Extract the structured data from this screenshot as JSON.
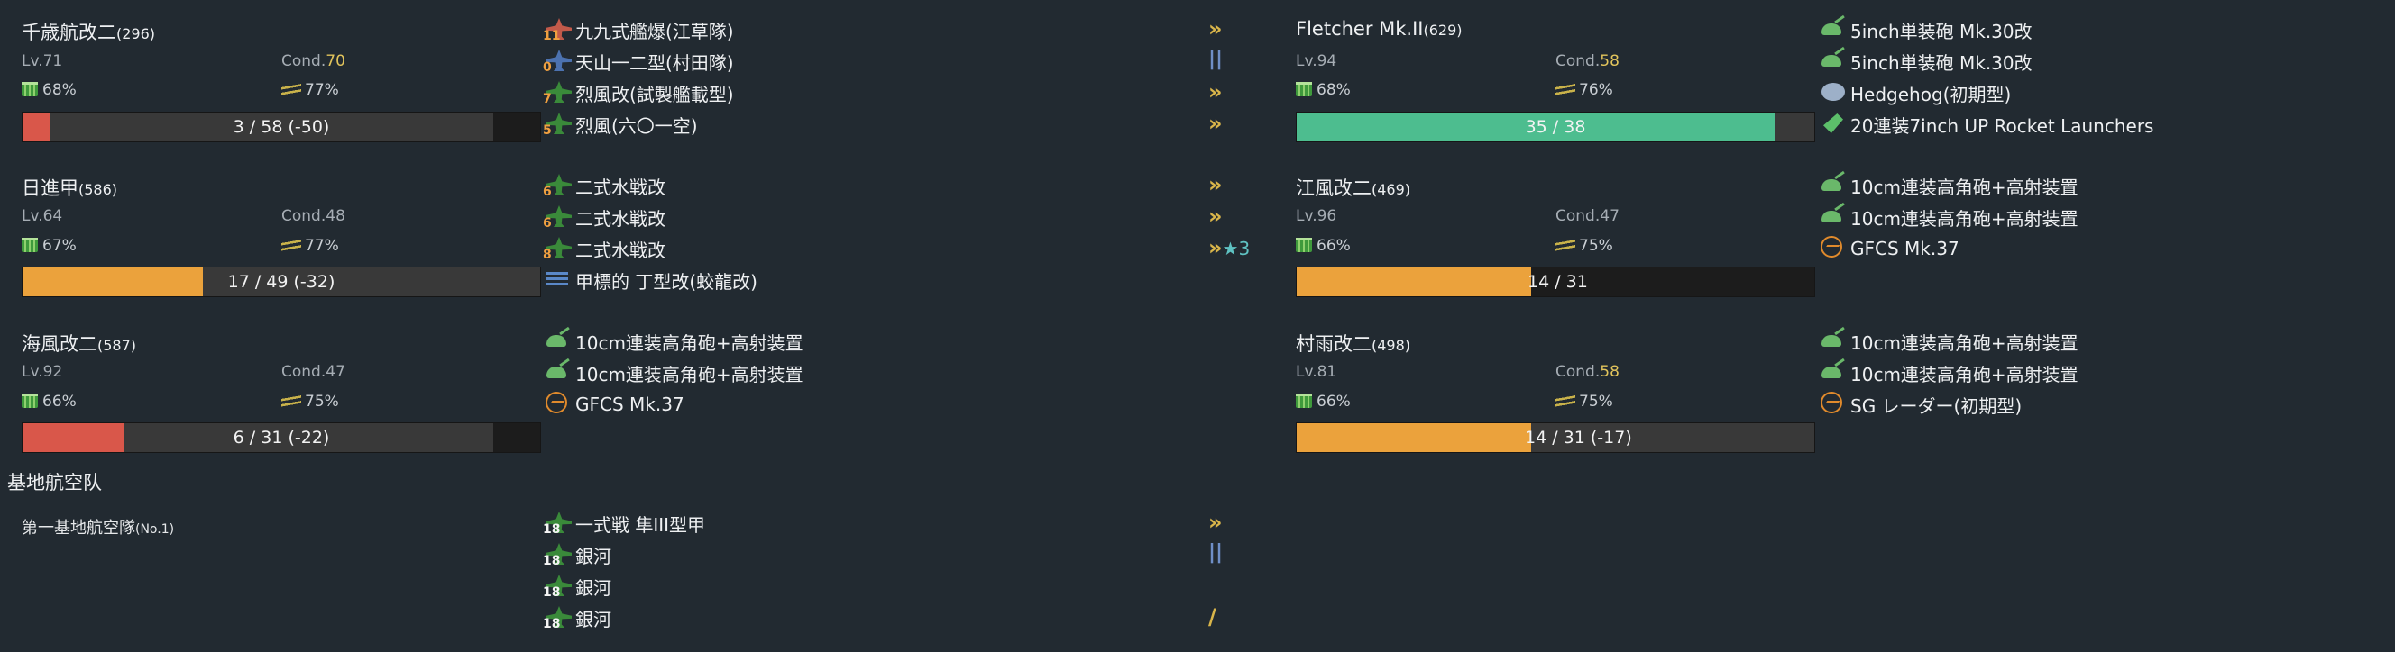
{
  "left_ships": [
    {
      "name": "千歳航改二",
      "id": "(296)",
      "lv": "Lv.71",
      "cond_label": "Cond.",
      "cond_value": "70",
      "ammo": "68%",
      "fuel": "77%",
      "hp": "3 / 58 (-50)",
      "hp_fraction": 0.052,
      "hp_color": "#d9574a",
      "equip": [
        {
          "icon": "dive-bomber-icon",
          "count": "11",
          "name": "九九式艦爆(江草隊)",
          "prof": "»"
        },
        {
          "icon": "torpedo-bomber-icon",
          "count": "0",
          "name": "天山一二型(村田隊)",
          "prof": "||"
        },
        {
          "icon": "fighter-icon",
          "count": "7",
          "name": "烈風改(試製艦載型)",
          "prof": "»"
        },
        {
          "icon": "fighter-icon",
          "count": "5",
          "name": "烈風(六〇一空)",
          "prof": "»"
        }
      ]
    },
    {
      "name": "日進甲",
      "id": "(586)",
      "lv": "Lv.64",
      "cond_label": "Cond.",
      "cond_value": "48",
      "ammo": "67%",
      "fuel": "77%",
      "hp": "17 / 49 (-32)",
      "hp_fraction": 0.347,
      "hp_color": "#eba23c",
      "equip": [
        {
          "icon": "seaplane-fighter-icon",
          "count": "6",
          "name": "二式水戦改",
          "prof": "»"
        },
        {
          "icon": "seaplane-fighter-icon",
          "count": "6",
          "name": "二式水戦改",
          "prof": "»"
        },
        {
          "icon": "seaplane-fighter-icon",
          "count": "8",
          "name": "二式水戦改",
          "prof": "»",
          "star": "★3"
        },
        {
          "icon": "midget-submarine-icon",
          "count": "",
          "name": "甲標的 丁型改(蛟龍改)",
          "prof": ""
        }
      ]
    },
    {
      "name": "海風改二",
      "id": "(587)",
      "lv": "Lv.92",
      "cond_label": "Cond.",
      "cond_value": "47",
      "ammo": "66%",
      "fuel": "75%",
      "hp": "6 / 31 (-22)",
      "hp_fraction": 0.194,
      "hp_color": "#d9574a",
      "equip": [
        {
          "icon": "gun-icon",
          "count": "",
          "name": "10cm連装高角砲+高射装置",
          "prof": ""
        },
        {
          "icon": "gun-icon",
          "count": "",
          "name": "10cm連装高角砲+高射装置",
          "prof": ""
        },
        {
          "icon": "radar-icon",
          "count": "",
          "name": "GFCS Mk.37",
          "prof": ""
        }
      ]
    }
  ],
  "right_ships": [
    {
      "name": "Fletcher Mk.II",
      "id": "(629)",
      "lv": "Lv.94",
      "cond_label": "Cond.",
      "cond_value": "58",
      "ammo": "68%",
      "fuel": "76%",
      "hp": "35 / 38",
      "hp_fraction": 0.921,
      "hp_color": "#4dbd8f",
      "equip": [
        {
          "icon": "gun-icon",
          "name": "5inch単装砲 Mk.30改"
        },
        {
          "icon": "gun-icon",
          "name": "5inch単装砲 Mk.30改"
        },
        {
          "icon": "asw-icon",
          "name": "Hedgehog(初期型)"
        },
        {
          "icon": "rocket-launcher-icon",
          "name": "20連装7inch UP Rocket Launchers"
        }
      ]
    },
    {
      "name": "江風改二",
      "id": "(469)",
      "lv": "Lv.96",
      "cond_label": "Cond.",
      "cond_value": "47",
      "ammo": "66%",
      "fuel": "75%",
      "hp": "14 / 31",
      "hp_fraction": 0.452,
      "hp_color": "#eba23c",
      "equip": [
        {
          "icon": "gun-icon",
          "name": "10cm連装高角砲+高射装置"
        },
        {
          "icon": "gun-icon",
          "name": "10cm連装高角砲+高射装置"
        },
        {
          "icon": "radar-icon",
          "name": "GFCS Mk.37"
        }
      ]
    },
    {
      "name": "村雨改二",
      "id": "(498)",
      "lv": "Lv.81",
      "cond_label": "Cond.",
      "cond_value": "58",
      "ammo": "66%",
      "fuel": "75%",
      "hp": "14 / 31 (-17)",
      "hp_fraction": 0.452,
      "hp_color": "#eba23c",
      "equip": [
        {
          "icon": "gun-icon",
          "name": "10cm連装高角砲+高射装置"
        },
        {
          "icon": "gun-icon",
          "name": "10cm連装高角砲+高射装置"
        },
        {
          "icon": "radar-icon",
          "name": "SG レーダー(初期型)"
        }
      ]
    }
  ],
  "base_air": {
    "section_title": "基地航空队",
    "corps_name": "第一基地航空隊",
    "corps_no": "(No.1)",
    "squadrons": [
      {
        "icon": "land-fighter-icon",
        "count": "18",
        "name": "一式戦 隼III型甲",
        "prof": "»"
      },
      {
        "icon": "land-bomber-icon",
        "count": "18",
        "name": "銀河",
        "prof": "||"
      },
      {
        "icon": "land-bomber-icon",
        "count": "18",
        "name": "銀河",
        "prof": ""
      },
      {
        "icon": "land-bomber-icon",
        "count": "18",
        "name": "銀河",
        "prof": "/"
      }
    ]
  },
  "colors": {
    "background": "#222a31",
    "cond_high": "#e2c45c",
    "hp_red": "#d9574a",
    "hp_orange": "#eba23c",
    "hp_green": "#4dbd8f"
  }
}
